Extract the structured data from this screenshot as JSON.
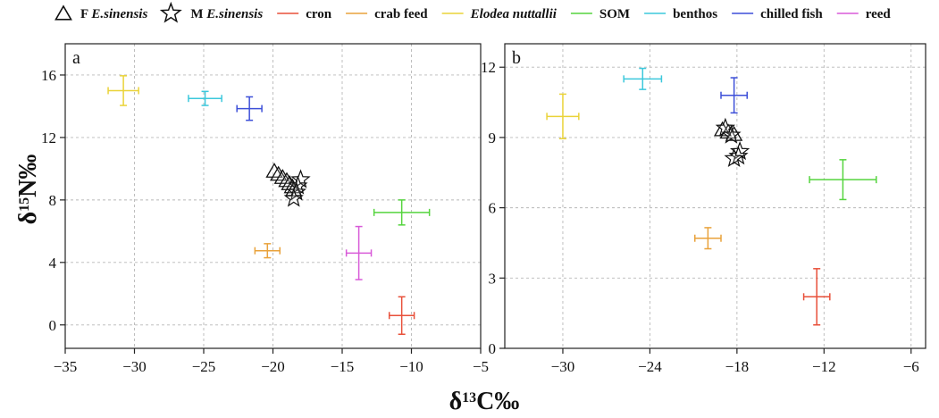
{
  "legend": [
    {
      "key": "F",
      "marker": "triangle",
      "prefix": "F",
      "italic": "E.sinensis",
      "color": "#111111"
    },
    {
      "key": "M",
      "marker": "star",
      "prefix": "M",
      "italic": "E.sinensis",
      "color": "#111111"
    },
    {
      "key": "cron",
      "marker": "line",
      "label": "cron",
      "color": "#e8503a"
    },
    {
      "key": "crab feed",
      "marker": "line",
      "label": "crab feed",
      "color": "#e9a23b"
    },
    {
      "key": "Elodea nuttallii",
      "marker": "line",
      "italic": "Elodea nuttallii",
      "color": "#ead338"
    },
    {
      "key": "SOM",
      "marker": "line",
      "label": "SOM",
      "color": "#55d43e"
    },
    {
      "key": "benthos",
      "marker": "line",
      "label": "benthos",
      "color": "#3cc8dc"
    },
    {
      "key": "chilled fish",
      "marker": "line",
      "label": "chilled fish",
      "color": "#3d4fd8"
    },
    {
      "key": "reed",
      "marker": "line",
      "label": "reed",
      "color": "#d85ad8"
    }
  ],
  "axes": {
    "xlabel_main": "δ",
    "xlabel_sup": "13",
    "xlabel_rest": "C‰",
    "ylabel_main": "δ",
    "ylabel_sup": "15",
    "ylabel_rest": "N‰"
  },
  "chart_data": [
    {
      "panel": "a",
      "type": "scatter",
      "xlim": [
        -35,
        -5
      ],
      "ylim": [
        -1.5,
        18
      ],
      "xticks": [
        -35,
        -30,
        -25,
        -20,
        -15,
        -10,
        -5
      ],
      "yticks": [
        0,
        4,
        8,
        12,
        16
      ],
      "sources": [
        {
          "name": "cron",
          "x": -10.7,
          "y": 0.6,
          "xerr": 0.9,
          "yerr": 1.2
        },
        {
          "name": "crab feed",
          "x": -20.4,
          "y": 4.75,
          "xerr": 0.9,
          "yerr": 0.45
        },
        {
          "name": "Elodea nuttallii",
          "x": -30.8,
          "y": 15.0,
          "xerr": 1.1,
          "yerr": 0.95
        },
        {
          "name": "SOM",
          "x": -10.7,
          "y": 7.2,
          "xerr": 2.0,
          "yerr": 0.8
        },
        {
          "name": "benthos",
          "x": -24.9,
          "y": 14.5,
          "xerr": 1.2,
          "yerr": 0.45
        },
        {
          "name": "chilled fish",
          "x": -21.7,
          "y": 13.85,
          "xerr": 0.9,
          "yerr": 0.75
        },
        {
          "name": "reed",
          "x": -13.8,
          "y": 4.6,
          "xerr": 0.9,
          "yerr": 1.7
        }
      ],
      "F": [
        [
          -19.9,
          9.8
        ],
        [
          -19.6,
          9.6
        ],
        [
          -19.3,
          9.4
        ],
        [
          -19.0,
          9.2
        ],
        [
          -18.8,
          9.0
        ],
        [
          -18.6,
          8.8
        ],
        [
          -18.5,
          8.6
        ]
      ],
      "M": [
        [
          -18.0,
          9.3
        ],
        [
          -18.2,
          8.9
        ],
        [
          -18.3,
          8.5
        ],
        [
          -18.5,
          8.1
        ]
      ]
    },
    {
      "panel": "b",
      "type": "scatter",
      "xlim": [
        -34,
        -5
      ],
      "ylim": [
        0,
        13
      ],
      "xticks": [
        -30,
        -24,
        -18,
        -12,
        -6
      ],
      "yticks": [
        0,
        3,
        6,
        9,
        12
      ],
      "sources": [
        {
          "name": "cron",
          "x": -12.5,
          "y": 2.2,
          "xerr": 0.9,
          "yerr": 1.2
        },
        {
          "name": "crab feed",
          "x": -20.0,
          "y": 4.7,
          "xerr": 0.9,
          "yerr": 0.45
        },
        {
          "name": "Elodea nuttallii",
          "x": -30.0,
          "y": 9.9,
          "xerr": 1.1,
          "yerr": 0.95
        },
        {
          "name": "SOM",
          "x": -10.7,
          "y": 7.2,
          "xerr": 2.3,
          "yerr": 0.85
        },
        {
          "name": "benthos",
          "x": -24.5,
          "y": 11.5,
          "xerr": 1.3,
          "yerr": 0.45
        },
        {
          "name": "chilled fish",
          "x": -18.2,
          "y": 10.8,
          "xerr": 0.9,
          "yerr": 0.75
        }
      ],
      "F": [
        [
          -19.0,
          9.3
        ],
        [
          -18.6,
          9.2
        ],
        [
          -18.2,
          9.1
        ]
      ],
      "M": [
        [
          -18.8,
          9.4
        ],
        [
          -18.4,
          9.1
        ],
        [
          -17.8,
          8.4
        ],
        [
          -17.9,
          8.2
        ],
        [
          -18.2,
          8.1
        ]
      ]
    }
  ]
}
